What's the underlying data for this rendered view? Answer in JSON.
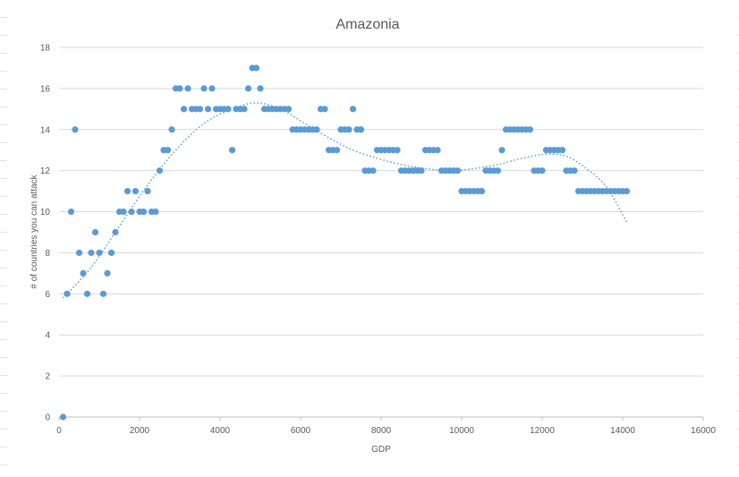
{
  "chart_data": {
    "type": "scatter",
    "title": "Amazonia",
    "xlabel": "GDP",
    "ylabel": "# of countries you can attack",
    "xlim": [
      0,
      16000
    ],
    "ylim": [
      0,
      18
    ],
    "xticks": [
      0,
      2000,
      4000,
      6000,
      8000,
      10000,
      12000,
      14000,
      16000
    ],
    "yticks": [
      0,
      2,
      4,
      6,
      8,
      10,
      12,
      14,
      16,
      18
    ],
    "xtick_labels": [
      "0",
      "2000",
      "4000",
      "6000",
      "8000",
      "10000",
      "12000",
      "14000",
      "16000"
    ],
    "ytick_labels": [
      "0",
      "2",
      "4",
      "6",
      "8",
      "10",
      "12",
      "14",
      "16",
      "18"
    ],
    "grid": "horizontal",
    "legend": "none",
    "marker_color": "#5b9bd5",
    "trendline": {
      "type": "polynomial",
      "style": "dotted",
      "color": "#5b9bd5",
      "points": [
        [
          100,
          5.8
        ],
        [
          800,
          7.3
        ],
        [
          1500,
          9.3
        ],
        [
          2200,
          11.3
        ],
        [
          2900,
          13.0
        ],
        [
          3600,
          14.3
        ],
        [
          4300,
          15.0
        ],
        [
          4900,
          15.3
        ],
        [
          5500,
          15.0
        ],
        [
          6100,
          14.3
        ],
        [
          6700,
          13.6
        ],
        [
          7300,
          13.0
        ],
        [
          7900,
          12.6
        ],
        [
          8500,
          12.3
        ],
        [
          9100,
          12.1
        ],
        [
          9700,
          12.0
        ],
        [
          10300,
          12.1
        ],
        [
          10900,
          12.3
        ],
        [
          11500,
          12.6
        ],
        [
          12100,
          12.8
        ],
        [
          12600,
          12.7
        ],
        [
          13100,
          12.1
        ],
        [
          13600,
          11.2
        ],
        [
          14100,
          9.5
        ]
      ]
    },
    "series": [
      {
        "x": [
          100,
          200,
          300,
          400,
          500,
          600,
          700,
          800,
          900,
          1000,
          1100,
          1200,
          1300,
          1400,
          1500,
          1600,
          1700,
          1800,
          1900,
          2000,
          2100,
          2200,
          2300,
          2400,
          2500,
          2600,
          2700,
          2800,
          2900,
          3000,
          3100,
          3200,
          3300,
          3400,
          3500,
          3600,
          3700,
          3800,
          3900,
          4000,
          4100,
          4200,
          4300,
          4400,
          4500,
          4600,
          4700,
          4800,
          4900,
          5000,
          5100,
          5200,
          5300,
          5400,
          5500,
          5600,
          5700,
          5800,
          5900,
          6000,
          6100,
          6200,
          6300,
          6400,
          6500,
          6600,
          6700,
          6800,
          6900,
          7000,
          7100,
          7200,
          7300,
          7400,
          7500,
          7600,
          7700,
          7800,
          7900,
          8000,
          8100,
          8200,
          8300,
          8400,
          8500,
          8600,
          8700,
          8800,
          8900,
          9000,
          9100,
          9200,
          9300,
          9400,
          9500,
          9600,
          9700,
          9800,
          9900,
          10000,
          10100,
          10200,
          10300,
          10400,
          10500,
          10600,
          10700,
          10800,
          10900,
          11000,
          11100,
          11200,
          11300,
          11400,
          11500,
          11600,
          11700,
          11800,
          11900,
          12000,
          12100,
          12200,
          12300,
          12400,
          12500,
          12600,
          12700,
          12800,
          12900,
          13000,
          13100,
          13200,
          13300,
          13400,
          13500,
          13600,
          13700,
          13800,
          13900,
          14000,
          14100
        ],
        "y": [
          0,
          6,
          10,
          14,
          8,
          7,
          6,
          8,
          9,
          8,
          6,
          7,
          8,
          9,
          10,
          10,
          11,
          10,
          11,
          10,
          10,
          11,
          10,
          10,
          12,
          13,
          13,
          14,
          16,
          16,
          15,
          16,
          15,
          15,
          15,
          16,
          15,
          16,
          15,
          15,
          15,
          15,
          13,
          15,
          15,
          15,
          16,
          17,
          17,
          16,
          15,
          15,
          15,
          15,
          15,
          15,
          15,
          14,
          14,
          14,
          14,
          14,
          14,
          14,
          15,
          15,
          13,
          13,
          13,
          14,
          14,
          14,
          15,
          14,
          14,
          12,
          12,
          12,
          13,
          13,
          13,
          13,
          13,
          13,
          12,
          12,
          12,
          12,
          12,
          12,
          13,
          13,
          13,
          13,
          12,
          12,
          12,
          12,
          12,
          11,
          11,
          11,
          11,
          11,
          11,
          12,
          12,
          12,
          12,
          13,
          14,
          14,
          14,
          14,
          14,
          14,
          14,
          12,
          12,
          12,
          13,
          13,
          13,
          13,
          13,
          12,
          12,
          12,
          11,
          11,
          11,
          11,
          11,
          11,
          11,
          11,
          11,
          11,
          11,
          11,
          11
        ]
      }
    ]
  }
}
